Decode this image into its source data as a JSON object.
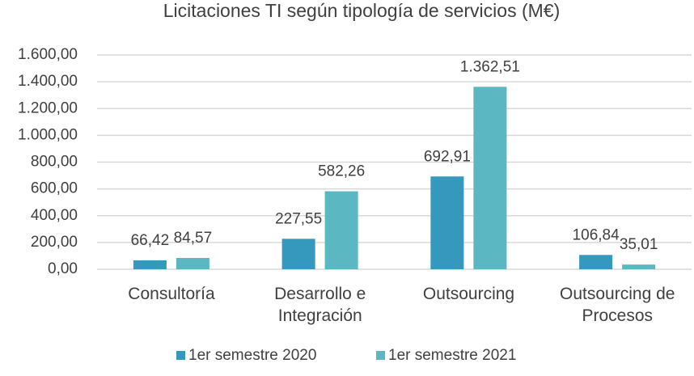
{
  "chart_data": {
    "type": "bar",
    "title": "Licitaciones TI según tipología de servicios (M€)",
    "categories": [
      "Consultoría",
      "Desarrollo e Integración",
      "Outsourcing",
      "Outsourcing de Procesos"
    ],
    "series": [
      {
        "name": "1er semestre 2020",
        "color": "#3598bd",
        "values": [
          66.42,
          227.55,
          692.91,
          106.84
        ],
        "value_labels": [
          "66,42",
          "227,55",
          "692,91",
          "106,84"
        ]
      },
      {
        "name": "1er semestre 2021",
        "color": "#5bb8c2",
        "values": [
          84.57,
          582.26,
          1362.51,
          35.01
        ],
        "value_labels": [
          "84,57",
          "582,26",
          "1.362,51",
          "35,01"
        ]
      }
    ],
    "ylim": [
      0,
      1600
    ],
    "yticks": [
      {
        "value": 0,
        "label": "0,00"
      },
      {
        "value": 200,
        "label": "200,00"
      },
      {
        "value": 400,
        "label": "400,00"
      },
      {
        "value": 600,
        "label": "600,00"
      },
      {
        "value": 800,
        "label": "800,00"
      },
      {
        "value": 1000,
        "label": "1.000,00"
      },
      {
        "value": 1200,
        "label": "1.200,00"
      },
      {
        "value": 1400,
        "label": "1.400,00"
      },
      {
        "value": 1600,
        "label": "1.600,00"
      }
    ],
    "grid": true,
    "legend": "bottom"
  }
}
